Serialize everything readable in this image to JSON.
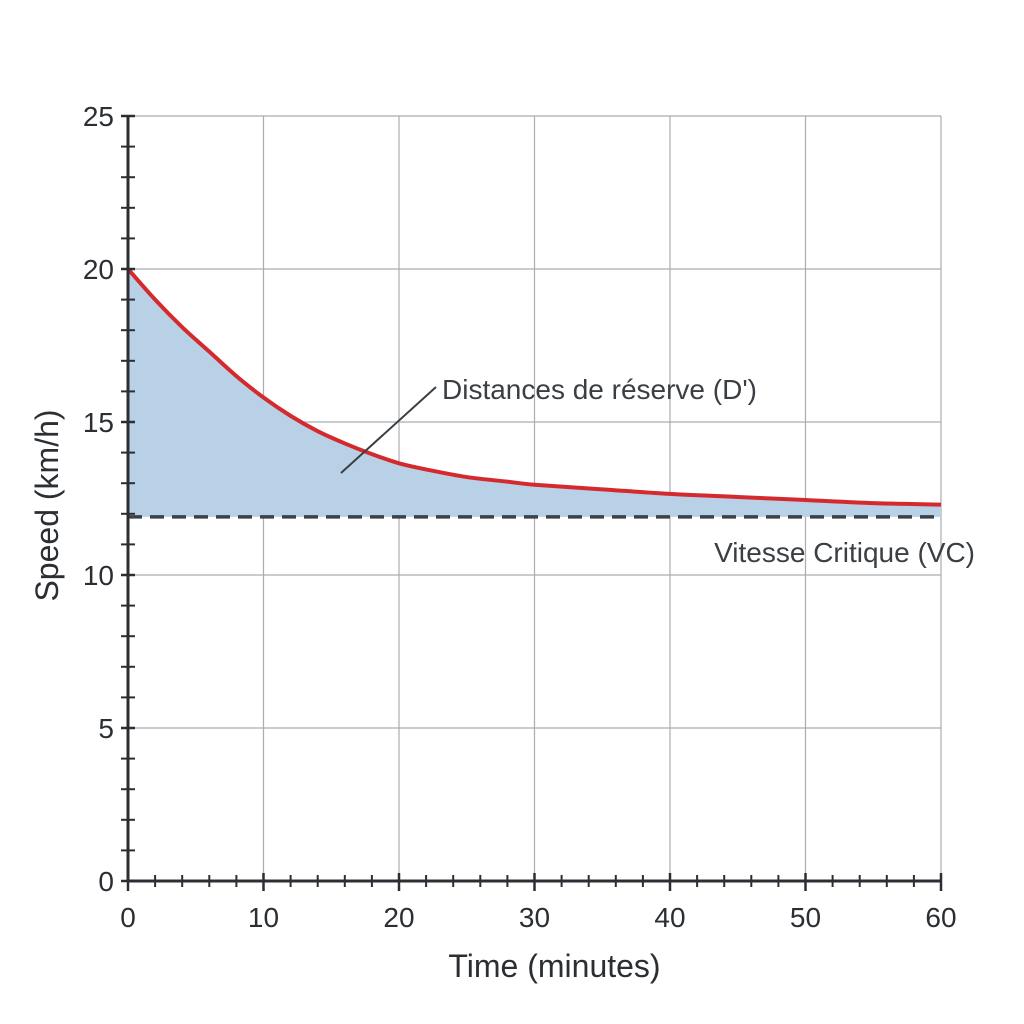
{
  "chart_data": {
    "type": "line",
    "title": "",
    "xlabel": "Time (minutes)",
    "ylabel": "Speed (km/h)",
    "xlim": [
      0,
      60
    ],
    "ylim": [
      0,
      25
    ],
    "x_ticks": [
      "0",
      "10",
      "20",
      "30",
      "40",
      "50",
      "60"
    ],
    "y_ticks": [
      "0",
      "5",
      "10",
      "15",
      "20",
      "25"
    ],
    "grid": true,
    "legend": "none",
    "series": [
      {
        "color": "#d42a2e",
        "x": [
          0,
          2,
          4,
          6,
          8,
          10,
          12,
          14,
          16,
          18,
          20,
          22,
          25,
          28,
          30,
          35,
          40,
          45,
          50,
          55,
          60
        ],
        "y": [
          20,
          19.0,
          18.1,
          17.3,
          16.5,
          15.8,
          15.2,
          14.7,
          14.3,
          13.95,
          13.65,
          13.45,
          13.2,
          13.05,
          12.95,
          12.8,
          12.65,
          12.55,
          12.45,
          12.35,
          12.3
        ]
      }
    ],
    "critical_speed": {
      "value": 11.9,
      "label": "Vitesse Critique (VC)",
      "color": "#3d4247"
    },
    "reserve_area": {
      "label": "Distances de réserve (D')",
      "fill": "#b9d1e7"
    },
    "colors": {
      "axis": "#2b2f33",
      "grid": "#a9adb1"
    }
  }
}
